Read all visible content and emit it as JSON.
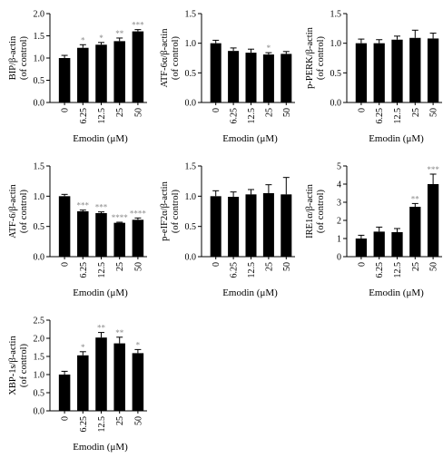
{
  "figure": {
    "colors": {
      "bar": "#000000",
      "significance": "#888888"
    }
  },
  "chart_data": [
    {
      "type": "bar",
      "categories": [
        "0",
        "6.25",
        "12.5",
        "25",
        "50"
      ],
      "values": [
        1.0,
        1.23,
        1.3,
        1.38,
        1.6
      ],
      "errors": [
        0.06,
        0.07,
        0.05,
        0.07,
        0.04
      ],
      "significance": [
        "",
        "*",
        "*",
        "**",
        "***"
      ],
      "ylabel_lines": [
        "BIP/β-actin",
        "(of control)"
      ],
      "xlabel": "Emodin (μM)",
      "ylim": [
        0,
        2.0
      ],
      "yticks": [
        0,
        0.5,
        1.0,
        1.5,
        2.0
      ],
      "yticklabels": [
        "0.0",
        "0.5",
        "1.0",
        "1.5",
        "2.0"
      ]
    },
    {
      "type": "bar",
      "categories": [
        "0",
        "6.25",
        "12.5",
        "25",
        "50"
      ],
      "values": [
        1.0,
        0.87,
        0.84,
        0.81,
        0.82
      ],
      "errors": [
        0.05,
        0.05,
        0.06,
        0.03,
        0.04
      ],
      "significance": [
        "",
        "",
        "",
        "*",
        ""
      ],
      "ylabel_lines": [
        "ATF-6α/β-actin",
        "(of control)"
      ],
      "xlabel": "Emodin (μM)",
      "ylim": [
        0,
        1.5
      ],
      "yticks": [
        0,
        0.5,
        1.0,
        1.5
      ],
      "yticklabels": [
        "0.0",
        "0.5",
        "1.0",
        "1.5"
      ]
    },
    {
      "type": "bar",
      "categories": [
        "0",
        "6.25",
        "12.5",
        "25",
        "50"
      ],
      "values": [
        1.0,
        1.0,
        1.06,
        1.09,
        1.08
      ],
      "errors": [
        0.07,
        0.06,
        0.06,
        0.13,
        0.09
      ],
      "significance": [
        "",
        "",
        "",
        "",
        ""
      ],
      "ylabel_lines": [
        "p-PERK/β-actin",
        "(of control)"
      ],
      "xlabel": "Emodin (μM)",
      "ylim": [
        0,
        1.5
      ],
      "yticks": [
        0,
        0.5,
        1.0,
        1.5
      ],
      "yticklabels": [
        "0.0",
        "0.5",
        "1.0",
        "1.5"
      ]
    },
    {
      "type": "bar",
      "categories": [
        "0",
        "6.25",
        "12.5",
        "25",
        "50"
      ],
      "values": [
        1.0,
        0.75,
        0.72,
        0.56,
        0.61
      ],
      "errors": [
        0.03,
        0.02,
        0.02,
        0.01,
        0.03
      ],
      "significance": [
        "",
        "***",
        "***",
        "****",
        "****"
      ],
      "ylabel_lines": [
        "ATF-6/β-actin",
        "(of control)"
      ],
      "xlabel": "Emodin (μM)",
      "ylim": [
        0,
        1.5
      ],
      "yticks": [
        0,
        0.5,
        1.0,
        1.5
      ],
      "yticklabels": [
        "0.0",
        "0.5",
        "1.0",
        "1.5"
      ]
    },
    {
      "type": "bar",
      "categories": [
        "0",
        "6.25",
        "12.5",
        "25",
        "50"
      ],
      "values": [
        1.0,
        0.99,
        1.03,
        1.05,
        1.03
      ],
      "errors": [
        0.09,
        0.08,
        0.08,
        0.14,
        0.28
      ],
      "significance": [
        "",
        "",
        "",
        "",
        ""
      ],
      "ylabel_lines": [
        "p-eIF2α/β-actin",
        "(of control)"
      ],
      "xlabel": "Emodin (μM)",
      "ylim": [
        0,
        1.5
      ],
      "yticks": [
        0,
        0.5,
        1.0,
        1.5
      ],
      "yticklabels": [
        "0.0",
        "0.5",
        "1.0",
        "1.5"
      ]
    },
    {
      "type": "bar",
      "categories": [
        "0",
        "6.25",
        "12.5",
        "25",
        "50"
      ],
      "values": [
        1.0,
        1.38,
        1.35,
        2.75,
        4.0
      ],
      "errors": [
        0.18,
        0.25,
        0.2,
        0.18,
        0.55
      ],
      "significance": [
        "",
        "",
        "",
        "**",
        "***"
      ],
      "ylabel_lines": [
        "IRE1α/β-actin",
        "(of control)"
      ],
      "xlabel": "Emodin (μM)",
      "ylim": [
        0,
        5
      ],
      "yticks": [
        0,
        1,
        2,
        3,
        4,
        5
      ],
      "yticklabels": [
        "0",
        "1",
        "2",
        "3",
        "4",
        "5"
      ]
    },
    {
      "type": "bar",
      "categories": [
        "0",
        "6.25",
        "12.5",
        "25",
        "50"
      ],
      "values": [
        1.0,
        1.53,
        2.02,
        1.86,
        1.59
      ],
      "errors": [
        0.09,
        0.1,
        0.14,
        0.17,
        0.1
      ],
      "significance": [
        "",
        "*",
        "**",
        "**",
        "*"
      ],
      "ylabel_lines": [
        "XBP-1s/β-actin",
        "(of control)"
      ],
      "xlabel": "Emodin (μM)",
      "ylim": [
        0,
        2.5
      ],
      "yticks": [
        0,
        0.5,
        1.0,
        1.5,
        2.0,
        2.5
      ],
      "yticklabels": [
        "0.0",
        "0.5",
        "1.0",
        "1.5",
        "2.0",
        "2.5"
      ]
    }
  ]
}
